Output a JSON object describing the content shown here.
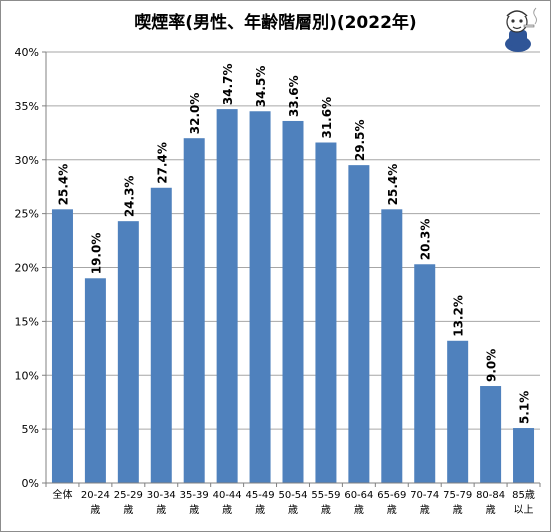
{
  "chart_data": {
    "type": "bar",
    "title": "喫煙率(男性、年齢階層別)(2022年)",
    "categories": [
      [
        "全体"
      ],
      [
        "20-24",
        "歳"
      ],
      [
        "25-29",
        "歳"
      ],
      [
        "30-34",
        "歳"
      ],
      [
        "35-39",
        "歳"
      ],
      [
        "40-44",
        "歳"
      ],
      [
        "45-49",
        "歳"
      ],
      [
        "50-54",
        "歳"
      ],
      [
        "55-59",
        "歳"
      ],
      [
        "60-64",
        "歳"
      ],
      [
        "65-69",
        "歳"
      ],
      [
        "70-74",
        "歳"
      ],
      [
        "75-79",
        "歳"
      ],
      [
        "80-84",
        "歳"
      ],
      [
        "85歳",
        "以上"
      ]
    ],
    "values": [
      25.4,
      19.0,
      24.3,
      27.4,
      32.0,
      34.7,
      34.5,
      33.6,
      31.6,
      29.5,
      25.4,
      20.3,
      13.2,
      9.0,
      5.1
    ],
    "data_labels": [
      "25.4%",
      "19.0%",
      "24.3%",
      "27.4%",
      "32.0%",
      "34.7%",
      "34.5%",
      "33.6%",
      "31.6%",
      "29.5%",
      "25.4%",
      "20.3%",
      "13.2%",
      "9.0%",
      "5.1%"
    ],
    "ylim": [
      0,
      40
    ],
    "yticks": [
      0,
      5,
      10,
      15,
      20,
      25,
      30,
      35,
      40
    ],
    "ytick_labels": [
      "0%",
      "5%",
      "10%",
      "15%",
      "20%",
      "25%",
      "30%",
      "35%",
      "40%"
    ],
    "grid": true,
    "bar_color": "#4f81bd"
  }
}
